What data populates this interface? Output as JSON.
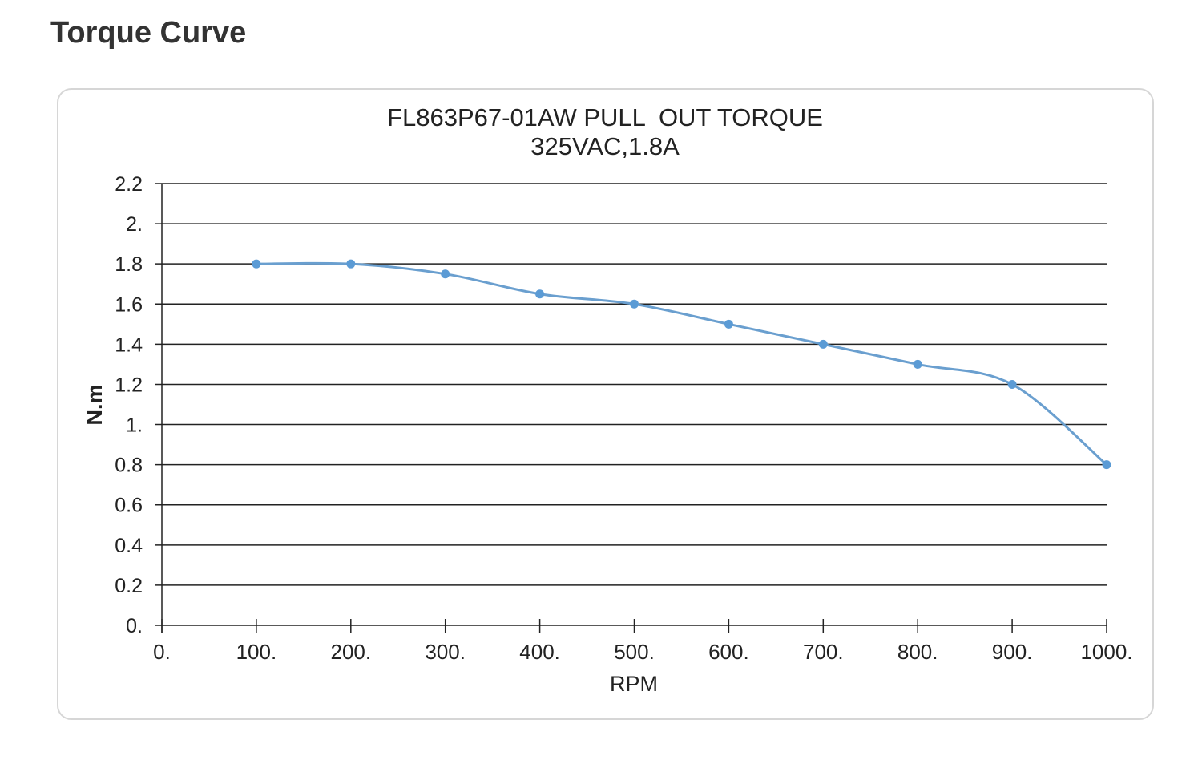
{
  "page": {
    "heading": "Torque Curve"
  },
  "chart_data": {
    "type": "line",
    "title": "FL863P67-01AW PULL  OUT TORQUE",
    "subtitle": "325VAC,1.8A",
    "xlabel": "RPM",
    "ylabel": "N.m",
    "xlim": [
      0,
      1000
    ],
    "ylim": [
      0,
      2.2
    ],
    "x_ticks": [
      0,
      100,
      200,
      300,
      400,
      500,
      600,
      700,
      800,
      900,
      1000
    ],
    "x_tick_labels": [
      "0.",
      "100.",
      "200.",
      "300.",
      "400.",
      "500.",
      "600.",
      "700.",
      "800.",
      "900.",
      "1000."
    ],
    "y_ticks": [
      0,
      0.2,
      0.4,
      0.6,
      0.8,
      1.0,
      1.2,
      1.4,
      1.6,
      1.8,
      2.0,
      2.2
    ],
    "y_tick_labels": [
      "0.",
      "0.2",
      "0.4",
      "0.6",
      "0.8",
      "1.",
      "1.2",
      "1.4",
      "1.6",
      "1.8",
      "2.",
      "2.2"
    ],
    "grid": true,
    "smooth": true,
    "series": [
      {
        "x": [
          100,
          200,
          300,
          400,
          500,
          600,
          700,
          800,
          900,
          1000
        ],
        "y": [
          1.8,
          1.8,
          1.75,
          1.65,
          1.6,
          1.5,
          1.4,
          1.3,
          1.2,
          0.8
        ],
        "color": "#6a9fcf",
        "marker_color": "#5b9bd5"
      }
    ]
  }
}
